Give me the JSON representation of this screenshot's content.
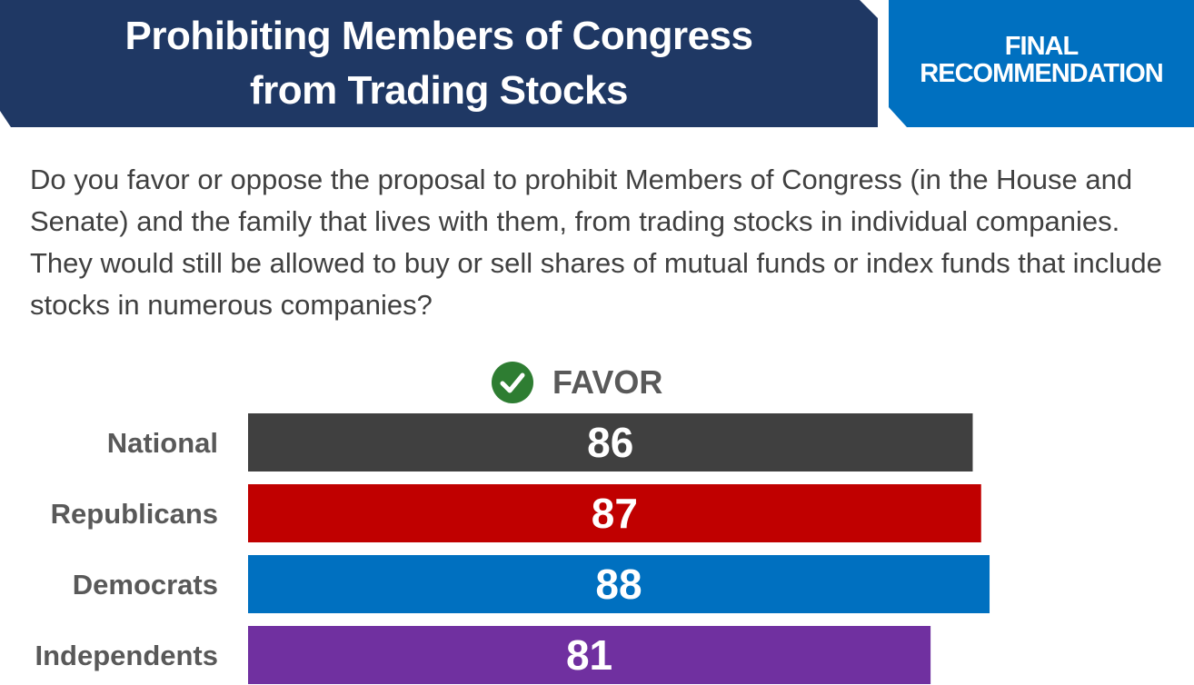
{
  "header": {
    "title": "Prohibiting Members of Congress\nfrom Trading Stocks",
    "badge": "FINAL\nRECOMMENDATION"
  },
  "question": "Do you favor or oppose the proposal to prohibit Members of Congress (in the House and Senate) and the family that lives with them, from trading stocks in individual companies. They would still be allowed to buy or sell shares of mutual funds or index funds that include stocks in numerous companies?",
  "legend": {
    "icon": "check-circle-icon",
    "label": "FAVOR",
    "icon_color": "#2e7d32"
  },
  "colors": {
    "title_bg": "#1f3864",
    "badge_bg": "#0070c0"
  },
  "chart_data": {
    "type": "bar",
    "orientation": "horizontal",
    "categories": [
      "National",
      "Republicans",
      "Democrats",
      "Independents"
    ],
    "series": [
      {
        "name": "FAVOR",
        "values": [
          86,
          87,
          88,
          81
        ],
        "colors": [
          "#404040",
          "#c00000",
          "#0070c0",
          "#7030a0"
        ]
      }
    ],
    "xlim": [
      0,
      100
    ],
    "grid": false
  }
}
